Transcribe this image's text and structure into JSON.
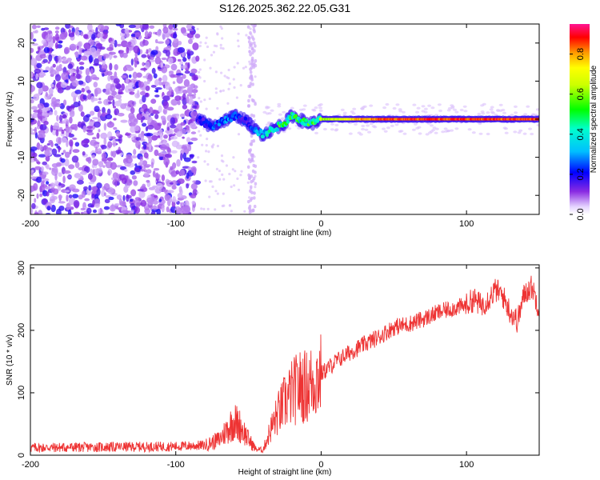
{
  "figure": {
    "title": "S126.2025.362.22.05.G31"
  },
  "chart_data": [
    {
      "type": "heatmap",
      "title": "S126.2025.362.22.05.G31",
      "xlabel": "Height of straight line (km)",
      "ylabel": "Frequency (Hz)",
      "xlim": [
        -200,
        150
      ],
      "ylim": [
        -25,
        25
      ],
      "xticks": [
        -200,
        -100,
        0,
        100
      ],
      "yticks": [
        -20,
        -10,
        0,
        10,
        20
      ],
      "colorbar": {
        "label": "Normalized spectral amplitude",
        "range": [
          0,
          0.95
        ],
        "ticks": [
          0.0,
          0.2,
          0.4,
          0.6,
          0.8
        ]
      },
      "description_points": {
        "noise_region_x": [
          -200,
          -85
        ],
        "scattered_noise_column_x": [
          -50,
          -45
        ],
        "signal_trace": {
          "x": [
            -85,
            -75,
            -65,
            -58,
            -50,
            -45,
            -40,
            -35,
            -30,
            -25,
            -20,
            -15,
            -10,
            -5,
            0,
            10,
            30,
            60,
            100,
            150
          ],
          "freq": [
            0,
            -2,
            0,
            1,
            -1,
            -3,
            -4,
            -3,
            -2,
            -1,
            1,
            0,
            -1,
            -1,
            0,
            0,
            0,
            0,
            0,
            0
          ],
          "amplitude": [
            0.2,
            0.25,
            0.3,
            0.25,
            0.2,
            0.35,
            0.4,
            0.45,
            0.5,
            0.55,
            0.6,
            0.5,
            0.55,
            0.6,
            0.65,
            0.7,
            0.85,
            0.92,
            0.9,
            0.9
          ]
        }
      }
    },
    {
      "type": "line",
      "xlabel": "Height of straight line (km)",
      "ylabel": "SNR (10 * v/v)",
      "xlim": [
        -200,
        150
      ],
      "ylim": [
        0,
        305
      ],
      "xticks": [
        -200,
        -100,
        0,
        100
      ],
      "yticks": [
        0,
        100,
        200,
        300
      ],
      "series": [
        {
          "name": "SNR",
          "color": "#ee3333",
          "x": [
            -200,
            -150,
            -100,
            -80,
            -70,
            -65,
            -60,
            -55,
            -50,
            -45,
            -40,
            -35,
            -30,
            -25,
            -20,
            -15,
            -10,
            -5,
            0,
            10,
            20,
            30,
            40,
            50,
            60,
            70,
            80,
            90,
            100,
            105,
            110,
            115,
            120,
            125,
            130,
            135,
            140,
            145,
            150
          ],
          "y": [
            12,
            13,
            14,
            16,
            25,
            40,
            55,
            45,
            25,
            10,
            8,
            40,
            65,
            85,
            100,
            110,
            110,
            120,
            130,
            150,
            165,
            178,
            190,
            205,
            210,
            218,
            228,
            235,
            240,
            250,
            240,
            250,
            265,
            255,
            230,
            215,
            260,
            270,
            235
          ]
        }
      ]
    }
  ]
}
